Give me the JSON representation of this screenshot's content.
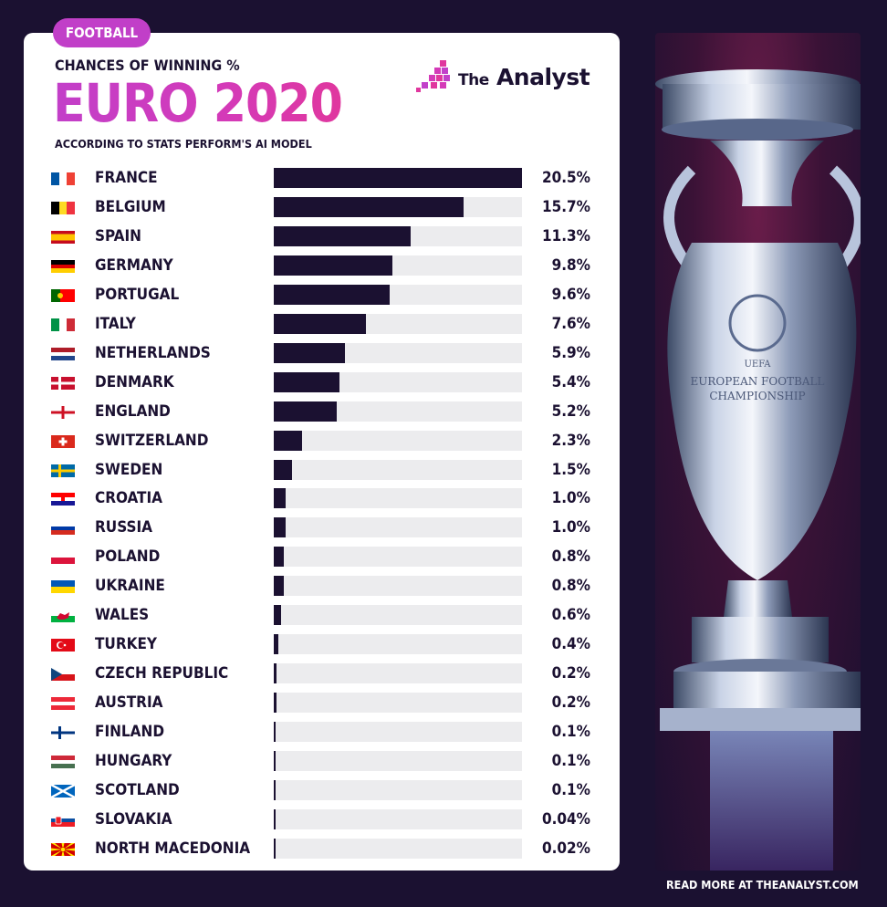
{
  "tag": "FOOTBALL",
  "header": {
    "pretitle": "CHANCES OF WINNING %",
    "title": "EURO 2020",
    "subtitle": "ACCORDING TO STATS PERFORM'S AI MODEL"
  },
  "logo": {
    "the": "The",
    "name": "Analyst"
  },
  "footer": "READ MORE AT THEANALYST.COM",
  "trophy_text": [
    "UEFA",
    "EUROPEAN FOOTBALL",
    "CHAMPIONSHIP"
  ],
  "colors": {
    "bar": "#1b1131",
    "track": "#ececee",
    "accent": "#c13fc8",
    "background": "#1b1131"
  },
  "chart_data": {
    "type": "bar",
    "orientation": "horizontal",
    "title": "EURO 2020",
    "xlim": [
      0,
      20.5
    ],
    "categories": [
      "FRANCE",
      "BELGIUM",
      "SPAIN",
      "GERMANY",
      "PORTUGAL",
      "ITALY",
      "NETHERLANDS",
      "DENMARK",
      "ENGLAND",
      "SWITZERLAND",
      "SWEDEN",
      "CROATIA",
      "RUSSIA",
      "POLAND",
      "UKRAINE",
      "WALES",
      "TURKEY",
      "CZECH REPUBLIC",
      "AUSTRIA",
      "FINLAND",
      "HUNGARY",
      "SCOTLAND",
      "SLOVAKIA",
      "NORTH MACEDONIA"
    ],
    "values": [
      20.5,
      15.7,
      11.3,
      9.8,
      9.6,
      7.6,
      5.9,
      5.4,
      5.2,
      2.3,
      1.5,
      1.0,
      1.0,
      0.8,
      0.8,
      0.6,
      0.4,
      0.2,
      0.2,
      0.1,
      0.1,
      0.1,
      0.04,
      0.02
    ],
    "labels": [
      "20.5%",
      "15.7%",
      "11.3%",
      "9.8%",
      "9.6%",
      "7.6%",
      "5.9%",
      "5.4%",
      "5.2%",
      "2.3%",
      "1.5%",
      "1.0%",
      "1.0%",
      "0.8%",
      "0.8%",
      "0.6%",
      "0.4%",
      "0.2%",
      "0.2%",
      "0.1%",
      "0.1%",
      "0.1%",
      "0.04%",
      "0.02%"
    ],
    "flags": [
      "france-flag-icon",
      "belgium-flag-icon",
      "spain-flag-icon",
      "germany-flag-icon",
      "portugal-flag-icon",
      "italy-flag-icon",
      "netherlands-flag-icon",
      "denmark-flag-icon",
      "england-flag-icon",
      "switzerland-flag-icon",
      "sweden-flag-icon",
      "croatia-flag-icon",
      "russia-flag-icon",
      "poland-flag-icon",
      "ukraine-flag-icon",
      "wales-flag-icon",
      "turkey-flag-icon",
      "czech-republic-flag-icon",
      "austria-flag-icon",
      "finland-flag-icon",
      "hungary-flag-icon",
      "scotland-flag-icon",
      "slovakia-flag-icon",
      "north-macedonia-flag-icon"
    ]
  }
}
